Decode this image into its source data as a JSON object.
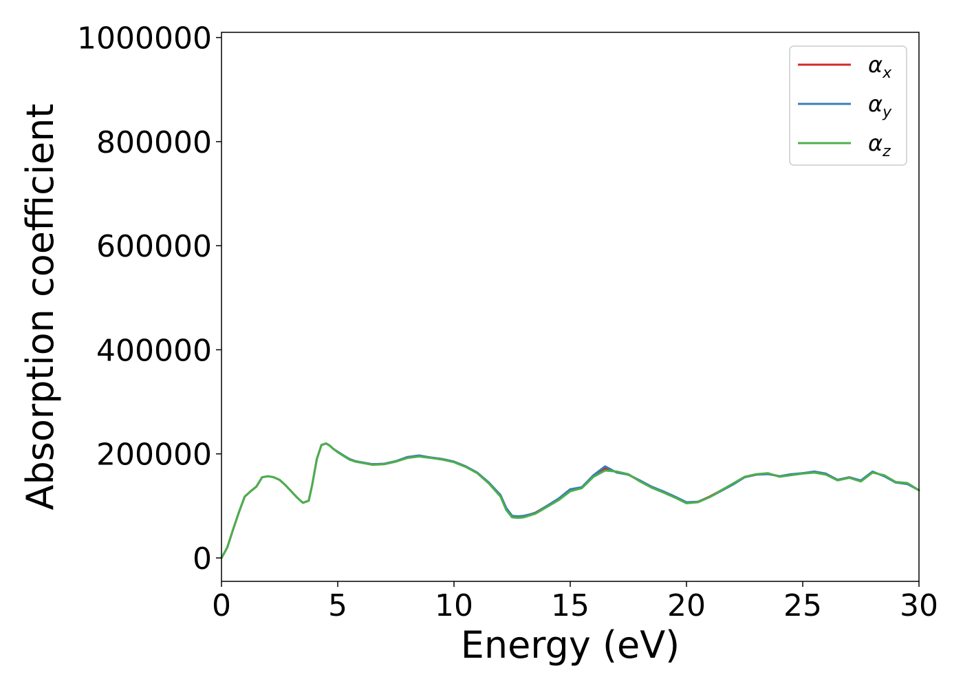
{
  "chart_data": {
    "type": "line",
    "xlabel": "Energy (eV)",
    "ylabel": "Absorption coefficient",
    "xlim": [
      0,
      30
    ],
    "ylim": [
      -45000,
      1010000
    ],
    "xticks": [
      0,
      5,
      10,
      15,
      20,
      25,
      30
    ],
    "yticks": [
      0,
      200000,
      400000,
      600000,
      800000,
      1000000
    ],
    "grid": false,
    "legend_position": "top-right",
    "series": [
      {
        "name": "α_x",
        "symbol": "α",
        "subscript": "x",
        "color": "#d62728",
        "x": [
          0,
          0.25,
          0.5,
          0.75,
          1.0,
          1.25,
          1.5,
          1.75,
          2.0,
          2.25,
          2.5,
          2.75,
          3.0,
          3.25,
          3.5,
          3.75,
          3.9,
          4.1,
          4.3,
          4.5,
          4.65,
          4.8,
          5.0,
          5.25,
          5.5,
          5.75,
          6.0,
          6.5,
          7.0,
          7.5,
          8.0,
          8.5,
          9.0,
          9.5,
          10.0,
          10.5,
          11.0,
          11.5,
          12.0,
          12.25,
          12.5,
          12.75,
          13.0,
          13.5,
          14.0,
          14.5,
          15.0,
          15.5,
          16.0,
          16.5,
          17.0,
          17.5,
          18.0,
          18.5,
          19.0,
          19.5,
          20.0,
          20.5,
          21.0,
          21.5,
          22.0,
          22.5,
          23.0,
          23.5,
          24.0,
          24.5,
          25.0,
          25.5,
          26.0,
          26.5,
          27.0,
          27.5,
          28.0,
          28.5,
          29.0,
          29.5,
          30.0
        ],
        "y": [
          0,
          20000,
          55000,
          88000,
          118000,
          128000,
          137000,
          155000,
          157000,
          155000,
          150000,
          140000,
          128000,
          116000,
          106000,
          110000,
          140000,
          190000,
          217000,
          220000,
          216000,
          210000,
          204000,
          197000,
          190000,
          186000,
          184000,
          180000,
          181000,
          186000,
          193000,
          196000,
          193000,
          190000,
          185000,
          176000,
          164000,
          144000,
          120000,
          95000,
          80000,
          80000,
          80000,
          87000,
          100000,
          113000,
          130000,
          135000,
          158000,
          172000,
          165000,
          160000,
          148000,
          136000,
          127000,
          117000,
          106000,
          108000,
          118000,
          130000,
          142000,
          155000,
          160000,
          162000,
          157000,
          160000,
          163000,
          165000,
          161000,
          150000,
          155000,
          148000,
          165000,
          158000,
          145000,
          143000,
          130000
        ]
      },
      {
        "name": "α_y",
        "symbol": "α",
        "subscript": "y",
        "color": "#377eb8",
        "x": [
          0,
          0.25,
          0.5,
          0.75,
          1.0,
          1.25,
          1.5,
          1.75,
          2.0,
          2.25,
          2.5,
          2.75,
          3.0,
          3.25,
          3.5,
          3.75,
          3.9,
          4.1,
          4.3,
          4.5,
          4.65,
          4.8,
          5.0,
          5.25,
          5.5,
          5.75,
          6.0,
          6.5,
          7.0,
          7.5,
          8.0,
          8.5,
          9.0,
          9.5,
          10.0,
          10.5,
          11.0,
          11.5,
          12.0,
          12.25,
          12.5,
          12.75,
          13.0,
          13.5,
          14.0,
          14.5,
          15.0,
          15.5,
          16.0,
          16.5,
          17.0,
          17.5,
          18.0,
          18.5,
          19.0,
          19.5,
          20.0,
          20.5,
          21.0,
          21.5,
          22.0,
          22.5,
          23.0,
          23.5,
          24.0,
          24.5,
          25.0,
          25.5,
          26.0,
          26.5,
          27.0,
          27.5,
          28.0,
          28.5,
          29.0,
          29.5,
          30.0
        ],
        "y": [
          0,
          20000,
          55000,
          88000,
          118000,
          128000,
          137000,
          155000,
          157000,
          155000,
          150000,
          140000,
          128000,
          116000,
          106000,
          110000,
          140000,
          190000,
          217000,
          220000,
          216000,
          210000,
          204000,
          197000,
          190000,
          186000,
          184000,
          180000,
          181000,
          186000,
          194000,
          197000,
          193000,
          190000,
          185000,
          176000,
          164000,
          145000,
          121000,
          96000,
          81000,
          80000,
          81000,
          86000,
          100000,
          114000,
          132000,
          136000,
          159000,
          176000,
          164000,
          160000,
          149000,
          137000,
          128000,
          118000,
          107000,
          108000,
          117000,
          129000,
          141000,
          155000,
          160000,
          161000,
          157000,
          161000,
          163000,
          166000,
          162000,
          150000,
          155000,
          149000,
          166000,
          157000,
          145000,
          142000,
          130000
        ]
      },
      {
        "name": "α_z",
        "symbol": "α",
        "subscript": "z",
        "color": "#4daf4a",
        "x": [
          0,
          0.25,
          0.5,
          0.75,
          1.0,
          1.25,
          1.5,
          1.75,
          2.0,
          2.25,
          2.5,
          2.75,
          3.0,
          3.25,
          3.5,
          3.75,
          3.9,
          4.1,
          4.3,
          4.5,
          4.65,
          4.8,
          5.0,
          5.25,
          5.5,
          5.75,
          6.0,
          6.5,
          7.0,
          7.5,
          8.0,
          8.5,
          9.0,
          9.5,
          10.0,
          10.5,
          11.0,
          11.5,
          12.0,
          12.25,
          12.5,
          12.75,
          13.0,
          13.5,
          14.0,
          14.5,
          15.0,
          15.5,
          16.0,
          16.5,
          17.0,
          17.5,
          18.0,
          18.5,
          19.0,
          19.5,
          20.0,
          20.5,
          21.0,
          21.5,
          22.0,
          22.5,
          23.0,
          23.5,
          24.0,
          24.5,
          25.0,
          25.5,
          26.0,
          26.5,
          27.0,
          27.5,
          28.0,
          28.5,
          29.0,
          29.5,
          30.0
        ],
        "y": [
          0,
          20000,
          55000,
          88000,
          118000,
          128000,
          137000,
          155000,
          157000,
          155000,
          150000,
          140000,
          128000,
          116000,
          106000,
          110000,
          140000,
          190000,
          217000,
          220000,
          216000,
          210000,
          203000,
          196000,
          189000,
          185000,
          183000,
          179000,
          180000,
          185000,
          192000,
          195000,
          192000,
          189000,
          184000,
          175000,
          163000,
          143000,
          118000,
          92000,
          78000,
          77000,
          78000,
          85000,
          98000,
          111000,
          128000,
          134000,
          156000,
          168000,
          166000,
          161000,
          147000,
          135000,
          126000,
          116000,
          105000,
          107000,
          117000,
          130000,
          143000,
          156000,
          161000,
          163000,
          156000,
          159000,
          162000,
          164000,
          160000,
          149000,
          154000,
          147000,
          164000,
          159000,
          146000,
          144000,
          130000
        ]
      }
    ]
  }
}
